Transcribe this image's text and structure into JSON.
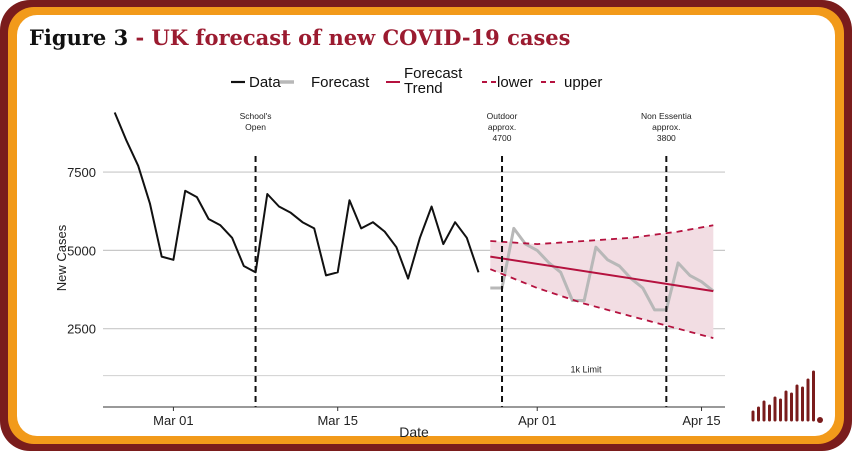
{
  "figure": {
    "label": "Figure 3",
    "separator": " - ",
    "title": "UK forecast of new COVID-19 cases"
  },
  "colors": {
    "frame_outer": "#7a1c1c",
    "frame_middle": "#f29a1a",
    "title_accent": "#9b1b30",
    "data": "#111111",
    "forecast": "#b8b8b8",
    "trend": "#b5123f",
    "band": "#f2dde3"
  },
  "chart_data": {
    "type": "line",
    "xlabel": "Date",
    "ylabel": "New Cases",
    "x_ticks": [
      {
        "date": "2021-03-01",
        "label": "Mar 01"
      },
      {
        "date": "2021-03-15",
        "label": "Mar 15"
      },
      {
        "date": "2021-04-01",
        "label": "Apr 01"
      },
      {
        "date": "2021-04-15",
        "label": "Apr 15"
      }
    ],
    "xlim": [
      "2021-02-23",
      "2021-04-17"
    ],
    "y_ticks": [
      2500,
      5000,
      7500
    ],
    "ylim": [
      0,
      9800
    ],
    "grid": "horizontal",
    "legend_position": "top",
    "legend": [
      {
        "key": "data",
        "label": "Data"
      },
      {
        "key": "forecast",
        "label": "Forecast"
      },
      {
        "key": "trend",
        "label": "Forecast\nTrend"
      },
      {
        "key": "lower",
        "label": "lower"
      },
      {
        "key": "upper",
        "label": "upper"
      }
    ],
    "series": [
      {
        "key": "data",
        "name": "Data",
        "points": [
          [
            "2021-02-24",
            9400
          ],
          [
            "2021-02-25",
            8500
          ],
          [
            "2021-02-26",
            7700
          ],
          [
            "2021-02-27",
            6500
          ],
          [
            "2021-02-28",
            4800
          ],
          [
            "2021-03-01",
            4700
          ],
          [
            "2021-03-02",
            6900
          ],
          [
            "2021-03-03",
            6700
          ],
          [
            "2021-03-04",
            6000
          ],
          [
            "2021-03-05",
            5800
          ],
          [
            "2021-03-06",
            5400
          ],
          [
            "2021-03-07",
            4500
          ],
          [
            "2021-03-08",
            4300
          ],
          [
            "2021-03-09",
            6800
          ],
          [
            "2021-03-10",
            6400
          ],
          [
            "2021-03-11",
            6200
          ],
          [
            "2021-03-12",
            5900
          ],
          [
            "2021-03-13",
            5700
          ],
          [
            "2021-03-14",
            4200
          ],
          [
            "2021-03-15",
            4300
          ],
          [
            "2021-03-16",
            6600
          ],
          [
            "2021-03-17",
            5700
          ],
          [
            "2021-03-18",
            5900
          ],
          [
            "2021-03-19",
            5600
          ],
          [
            "2021-03-20",
            5100
          ],
          [
            "2021-03-21",
            4100
          ],
          [
            "2021-03-22",
            5400
          ],
          [
            "2021-03-23",
            6400
          ],
          [
            "2021-03-24",
            5200
          ],
          [
            "2021-03-25",
            5900
          ],
          [
            "2021-03-26",
            5400
          ],
          [
            "2021-03-27",
            4300
          ]
        ]
      },
      {
        "key": "forecast",
        "name": "Forecast",
        "points": [
          [
            "2021-03-28",
            3800
          ],
          [
            "2021-03-29",
            3800
          ],
          [
            "2021-03-30",
            5700
          ],
          [
            "2021-03-31",
            5200
          ],
          [
            "2021-04-01",
            5000
          ],
          [
            "2021-04-02",
            4600
          ],
          [
            "2021-04-03",
            4300
          ],
          [
            "2021-04-04",
            3400
          ],
          [
            "2021-04-05",
            3400
          ],
          [
            "2021-04-06",
            5100
          ],
          [
            "2021-04-07",
            4700
          ],
          [
            "2021-04-08",
            4500
          ],
          [
            "2021-04-09",
            4100
          ],
          [
            "2021-04-10",
            3800
          ],
          [
            "2021-04-11",
            3100
          ],
          [
            "2021-04-12",
            3100
          ],
          [
            "2021-04-13",
            4600
          ],
          [
            "2021-04-14",
            4200
          ],
          [
            "2021-04-15",
            4000
          ],
          [
            "2021-04-16",
            3700
          ]
        ]
      },
      {
        "key": "trend",
        "name": "Forecast\nTrend",
        "points": [
          [
            "2021-03-28",
            4800
          ],
          [
            "2021-04-16",
            3700
          ]
        ]
      },
      {
        "key": "lower",
        "name": "lower",
        "points": [
          [
            "2021-03-28",
            4400
          ],
          [
            "2021-04-01",
            3800
          ],
          [
            "2021-04-05",
            3300
          ],
          [
            "2021-04-09",
            2900
          ],
          [
            "2021-04-13",
            2500
          ],
          [
            "2021-04-16",
            2200
          ]
        ]
      },
      {
        "key": "upper",
        "name": "upper",
        "points": [
          [
            "2021-03-28",
            5300
          ],
          [
            "2021-04-01",
            5200
          ],
          [
            "2021-04-05",
            5300
          ],
          [
            "2021-04-09",
            5400
          ],
          [
            "2021-04-13",
            5600
          ],
          [
            "2021-04-16",
            5800
          ]
        ]
      }
    ],
    "vlines": [
      {
        "date": "2021-03-08",
        "label": "School's\nOpen"
      },
      {
        "date": "2021-03-29",
        "label": "Outdoor\napprox.\n4700"
      },
      {
        "date": "2021-04-12",
        "label": "Non Essentia\napprox.\n3800"
      }
    ],
    "hlines": [
      {
        "value": 1000,
        "label": "1k Limit"
      }
    ]
  }
}
